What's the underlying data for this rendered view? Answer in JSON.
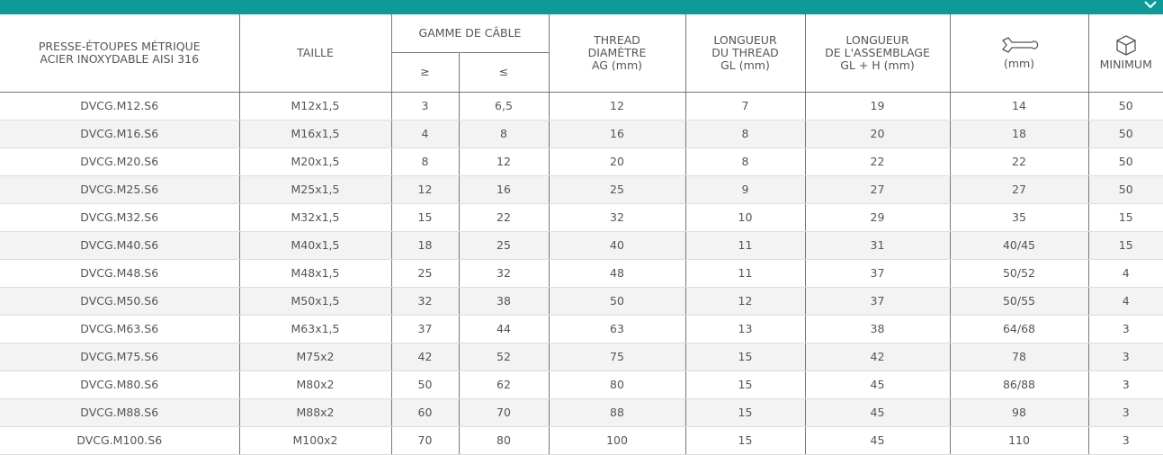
{
  "header": {
    "col0": [
      "PRESSE-ÉTOUPES MÉTRIQUE",
      "ACIER INOXYDABLE AISI 316"
    ],
    "col1": "TAILLE",
    "col2": "GAMME DE CÂBLE",
    "col2a": "≥",
    "col2b": "≤",
    "col3": [
      "THREAD",
      "DIAMÈTRE",
      "AG (mm)"
    ],
    "col4": [
      "LONGUEUR",
      "DU THREAD",
      "GL (mm)"
    ],
    "col5": [
      "LONGUEUR",
      "DE L'ASSEMBLAGE",
      "GL + H (mm)"
    ],
    "col6": "(mm)",
    "col7": "MINIMUM"
  },
  "table": {
    "rows": [
      [
        "DVCG.M12.S6",
        "M12x1,5",
        "3",
        "6,5",
        "12",
        "7",
        "19",
        "14",
        "50"
      ],
      [
        "DVCG.M16.S6",
        "M16x1,5",
        "4",
        "8",
        "16",
        "8",
        "20",
        "18",
        "50"
      ],
      [
        "DVCG.M20.S6",
        "M20x1,5",
        "8",
        "12",
        "20",
        "8",
        "22",
        "22",
        "50"
      ],
      [
        "DVCG.M25.S6",
        "M25x1,5",
        "12",
        "16",
        "25",
        "9",
        "27",
        "27",
        "50"
      ],
      [
        "DVCG.M32.S6",
        "M32x1,5",
        "15",
        "22",
        "32",
        "10",
        "29",
        "35",
        "15"
      ],
      [
        "DVCG.M40.S6",
        "M40x1,5",
        "18",
        "25",
        "40",
        "11",
        "31",
        "40/45",
        "15"
      ],
      [
        "DVCG.M48.S6",
        "M48x1,5",
        "25",
        "32",
        "48",
        "11",
        "37",
        "50/52",
        "4"
      ],
      [
        "DVCG.M50.S6",
        "M50x1,5",
        "32",
        "38",
        "50",
        "12",
        "37",
        "50/55",
        "4"
      ],
      [
        "DVCG.M63.S6",
        "M63x1,5",
        "37",
        "44",
        "63",
        "13",
        "38",
        "64/68",
        "3"
      ],
      [
        "DVCG.M75.S6",
        "M75x2",
        "42",
        "52",
        "75",
        "15",
        "42",
        "78",
        "3"
      ],
      [
        "DVCG.M80.S6",
        "M80x2",
        "50",
        "62",
        "80",
        "15",
        "45",
        "86/88",
        "3"
      ],
      [
        "DVCG.M88.S6",
        "M88x2",
        "60",
        "70",
        "88",
        "15",
        "45",
        "98",
        "3"
      ],
      [
        "DVCG.M100.S6",
        "M100x2",
        "70",
        "80",
        "100",
        "15",
        "45",
        "110",
        "3"
      ]
    ]
  }
}
